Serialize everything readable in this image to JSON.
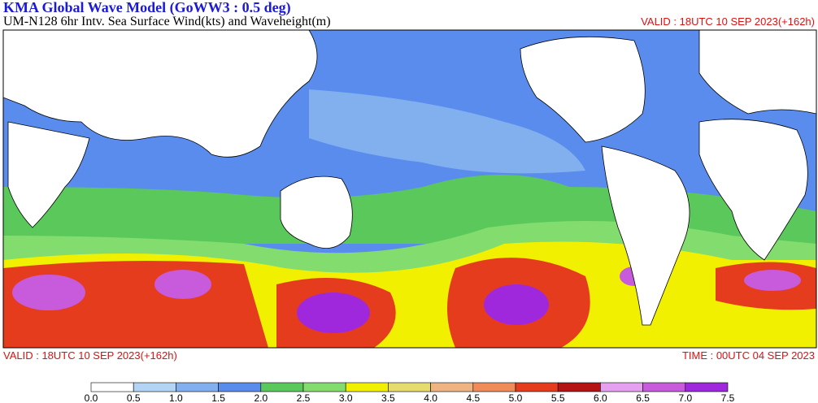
{
  "header": {
    "title": "KMA  Global Wave Model (GoWW3 : 0.5 deg)",
    "subtitle": "UM-N128  6hr Intv. Sea Surface Wind(kts) and Waveheight(m)",
    "valid": "VALID : 18UTC 10 SEP 2023(+162h)"
  },
  "footer": {
    "valid": "VALID : 18UTC 10 SEP 2023(+162h)",
    "time": "TIME : 00UTC 04 SEP 2023"
  },
  "colorbar": {
    "colors": [
      "#ffffff",
      "#b4d4f4",
      "#82b0ee",
      "#5a8cee",
      "#5ac85a",
      "#82dc6e",
      "#f0f000",
      "#e6dc6e",
      "#f0b482",
      "#f08c5a",
      "#e63c1e",
      "#b41414",
      "#e6a0f0",
      "#c85adc",
      "#a028dc"
    ],
    "ticks": [
      {
        "value": 0,
        "label": "0.0"
      },
      {
        "value": 0.5,
        "label": "0.5"
      },
      {
        "value": 1,
        "label": "1.0"
      },
      {
        "value": 1.5,
        "label": "1.5"
      },
      {
        "value": 2,
        "label": "2.0"
      },
      {
        "value": 2.5,
        "label": "2.5"
      },
      {
        "value": 3,
        "label": "3.0"
      },
      {
        "value": 3.5,
        "label": "3.5"
      },
      {
        "value": 4,
        "label": "4.0"
      },
      {
        "value": 4.5,
        "label": "4.5"
      },
      {
        "value": 5,
        "label": "5.0"
      },
      {
        "value": 5.5,
        "label": "5.5"
      },
      {
        "value": 6,
        "label": "6.0"
      },
      {
        "value": 6.5,
        "label": "6.5"
      },
      {
        "value": 7,
        "label": "7.0"
      },
      {
        "value": 7.5,
        "label": "7.5"
      }
    ]
  }
}
